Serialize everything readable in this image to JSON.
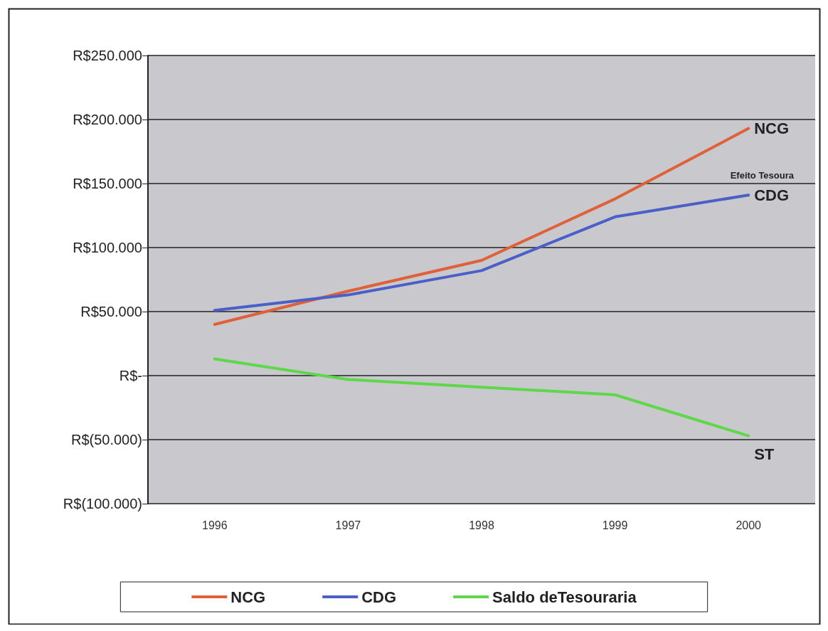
{
  "chart_data": {
    "type": "line",
    "categories": [
      "1996",
      "1997",
      "1998",
      "1999",
      "2000"
    ],
    "series": [
      {
        "name": "NCG",
        "color": "#e0603a",
        "values": [
          40000,
          66000,
          90000,
          138000,
          193000
        ]
      },
      {
        "name": "CDG",
        "color": "#4a5fc8",
        "values": [
          51000,
          63000,
          82000,
          124000,
          141000
        ]
      },
      {
        "name": "Saldo deTesouraria",
        "color": "#5ed84a",
        "values": [
          13000,
          -3000,
          -9000,
          -15000,
          -47000
        ]
      }
    ],
    "ylim": [
      -100000,
      250000
    ],
    "yticks": [
      {
        "value": -100000,
        "label": "R$(100.000)"
      },
      {
        "value": -50000,
        "label": "R$(50.000)"
      },
      {
        "value": 0,
        "label": "R$-"
      },
      {
        "value": 50000,
        "label": "R$50.000"
      },
      {
        "value": 100000,
        "label": "R$100.000"
      },
      {
        "value": 150000,
        "label": "R$150.000"
      },
      {
        "value": 200000,
        "label": "R$200.000"
      },
      {
        "value": 250000,
        "label": "R$250.000"
      }
    ],
    "annotations": [
      {
        "text": "NCG",
        "x": "2000",
        "y": 193000
      },
      {
        "text": "CDG",
        "x": "2000",
        "y": 141000
      },
      {
        "text": "ST",
        "x": "2000",
        "y": -47000
      },
      "Efeito Tesoura"
    ],
    "grid": "y",
    "legend": "bottom",
    "marker": "none",
    "line_style": "solid"
  }
}
